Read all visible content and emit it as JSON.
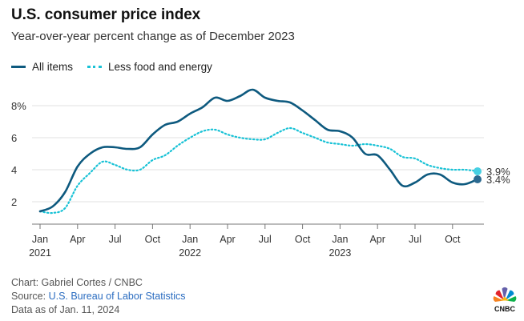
{
  "header": {
    "title": "U.S. consumer price index",
    "subtitle": "Year-over-year percent change as of December 2023"
  },
  "legend": [
    {
      "label": "All items",
      "color": "#0e5a7f",
      "style": "solid"
    },
    {
      "label": "Less food and energy",
      "color": "#19c2d6",
      "style": "dotted"
    }
  ],
  "chart_data": {
    "type": "line",
    "title": "U.S. consumer price index",
    "subtitle": "Year-over-year percent change as of December 2023",
    "xlabel": "",
    "ylabel": "",
    "ylim": [
      0.6,
      9.6
    ],
    "y_ticks": [
      {
        "value": 2,
        "label": "2"
      },
      {
        "value": 4,
        "label": "4"
      },
      {
        "value": 6,
        "label": "6"
      },
      {
        "value": 8,
        "label": "8%"
      }
    ],
    "x_ticks": [
      {
        "index": 0,
        "label": "Jan",
        "year": "2021"
      },
      {
        "index": 3,
        "label": "Apr",
        "year": ""
      },
      {
        "index": 6,
        "label": "Jul",
        "year": ""
      },
      {
        "index": 9,
        "label": "Oct",
        "year": ""
      },
      {
        "index": 12,
        "label": "Jan",
        "year": "2022"
      },
      {
        "index": 15,
        "label": "Apr",
        "year": ""
      },
      {
        "index": 18,
        "label": "Jul",
        "year": ""
      },
      {
        "index": 21,
        "label": "Oct",
        "year": ""
      },
      {
        "index": 24,
        "label": "Jan",
        "year": "2023"
      },
      {
        "index": 27,
        "label": "Apr",
        "year": ""
      },
      {
        "index": 30,
        "label": "Jul",
        "year": ""
      },
      {
        "index": 33,
        "label": "Oct",
        "year": ""
      }
    ],
    "x": [
      "Jan 2021",
      "Feb 2021",
      "Mar 2021",
      "Apr 2021",
      "May 2021",
      "Jun 2021",
      "Jul 2021",
      "Aug 2021",
      "Sep 2021",
      "Oct 2021",
      "Nov 2021",
      "Dec 2021",
      "Jan 2022",
      "Feb 2022",
      "Mar 2022",
      "Apr 2022",
      "May 2022",
      "Jun 2022",
      "Jul 2022",
      "Aug 2022",
      "Sep 2022",
      "Oct 2022",
      "Nov 2022",
      "Dec 2022",
      "Jan 2023",
      "Feb 2023",
      "Mar 2023",
      "Apr 2023",
      "May 2023",
      "Jun 2023",
      "Jul 2023",
      "Aug 2023",
      "Sep 2023",
      "Oct 2023",
      "Nov 2023",
      "Dec 2023"
    ],
    "series": [
      {
        "name": "All items",
        "color": "#0e5a7f",
        "style": "solid",
        "values": [
          1.4,
          1.7,
          2.6,
          4.2,
          5.0,
          5.4,
          5.4,
          5.3,
          5.4,
          6.2,
          6.8,
          7.0,
          7.5,
          7.9,
          8.5,
          8.3,
          8.6,
          9.0,
          8.5,
          8.3,
          8.2,
          7.7,
          7.1,
          6.5,
          6.4,
          6.0,
          5.0,
          4.9,
          4.0,
          3.0,
          3.2,
          3.7,
          3.7,
          3.2,
          3.1,
          3.4
        ],
        "end_label": "3.4%"
      },
      {
        "name": "Less food and energy",
        "color": "#19c2d6",
        "style": "dotted",
        "values": [
          1.4,
          1.3,
          1.6,
          3.0,
          3.8,
          4.5,
          4.3,
          4.0,
          4.0,
          4.6,
          4.9,
          5.5,
          6.0,
          6.4,
          6.5,
          6.2,
          6.0,
          5.9,
          5.9,
          6.3,
          6.6,
          6.3,
          6.0,
          5.7,
          5.6,
          5.5,
          5.6,
          5.5,
          5.3,
          4.8,
          4.7,
          4.3,
          4.1,
          4.0,
          4.0,
          3.9
        ],
        "end_label": "3.9%"
      }
    ]
  },
  "footer": {
    "credit": "Chart: Gabriel Cortes / CNBC",
    "source_prefix": "Source: ",
    "source_link": "U.S. Bureau of Labor Statistics",
    "data_as_of": "Data as of Jan. 11, 2024"
  },
  "logo": {
    "label": "CNBC"
  }
}
